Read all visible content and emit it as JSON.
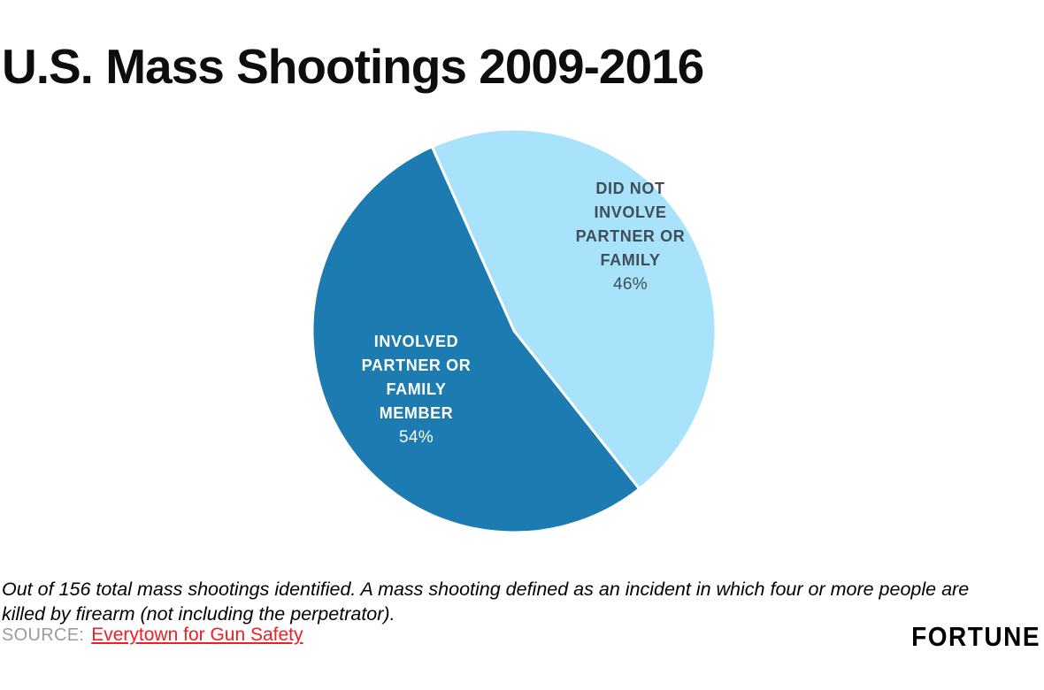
{
  "page": {
    "title": "U.S. Mass Shootings 2009-2016",
    "footnote": "Out of 156 total mass shootings identified. A mass shooting defined as an incident in which four or more people are killed by firearm (not including the perpetrator).",
    "source_label": "SOURCE:",
    "source_link_text": "Everytown for Gun Safety",
    "brand": "FORTUNE"
  },
  "chart_data": {
    "type": "pie",
    "title": "U.S. Mass Shootings 2009-2016",
    "total": 100,
    "start_angle_deg": -24,
    "note": "Out of 156 total mass shootings identified",
    "slices": [
      {
        "label": "DID NOT INVOLVE PARTNER OR FAMILY",
        "value": 46,
        "color": "#a9e3fb",
        "label_lines": "DID NOT\nINVOLVE\nPARTNER OR\nFAMILY",
        "pct_label": "46%",
        "label_color": "#3f4e58"
      },
      {
        "label": "INVOLVED PARTNER OR FAMILY MEMBER",
        "value": 54,
        "color": "#1c7bb0",
        "label_lines": "INVOLVED\nPARTNER OR\nFAMILY\nMEMBER",
        "pct_label": "54%",
        "label_color": "#ffffff"
      }
    ]
  }
}
